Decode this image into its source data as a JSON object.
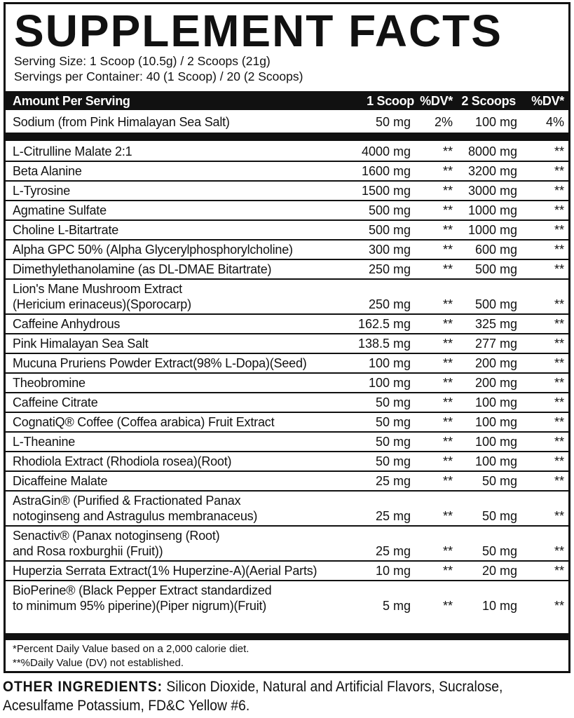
{
  "title": "SUPPLEMENT FACTS",
  "serving_size": "Serving Size: 1 Scoop (10.5g) / 2 Scoops (21g)",
  "servings_per_container": "Servings per Container: 40 (1 Scoop) / 20 (2 Scoops)",
  "header": {
    "amount": "Amount Per Serving",
    "scoop1": "1 Scoop",
    "dv1": "%DV*",
    "scoop2": "2 Scoops",
    "dv2": "%DV*"
  },
  "sodium": {
    "name": "Sodium (from Pink Himalayan Sea Salt)",
    "a1": "50 mg",
    "d1": "2%",
    "a2": "100 mg",
    "d2": "4%"
  },
  "ingredients": [
    {
      "lines": [
        "L-Citrulline Malate 2:1"
      ],
      "a1": "4000 mg",
      "d1": "**",
      "a2": "8000 mg",
      "d2": "**"
    },
    {
      "lines": [
        "Beta Alanine"
      ],
      "a1": "1600 mg",
      "d1": "**",
      "a2": "3200 mg",
      "d2": "**"
    },
    {
      "lines": [
        "L-Tyrosine"
      ],
      "a1": "1500 mg",
      "d1": "**",
      "a2": "3000 mg",
      "d2": "**"
    },
    {
      "lines": [
        "Agmatine Sulfate"
      ],
      "a1": "500 mg",
      "d1": "**",
      "a2": "1000 mg",
      "d2": "**"
    },
    {
      "lines": [
        "Choline L-Bitartrate"
      ],
      "a1": "500 mg",
      "d1": "**",
      "a2": "1000 mg",
      "d2": "**"
    },
    {
      "lines": [
        "Alpha GPC 50% (Alpha Glycerylphosphorylcholine)"
      ],
      "a1": "300 mg",
      "d1": "**",
      "a2": "600 mg",
      "d2": "**"
    },
    {
      "lines": [
        "Dimethylethanolamine (as DL-DMAE Bitartrate)"
      ],
      "a1": "250 mg",
      "d1": "**",
      "a2": "500 mg",
      "d2": "**"
    },
    {
      "lines": [
        "Lion's Mane Mushroom Extract",
        "(Hericium erinaceus)(Sporocarp)"
      ],
      "a1": "250 mg",
      "d1": "**",
      "a2": "500 mg",
      "d2": "**"
    },
    {
      "lines": [
        "Caffeine Anhydrous"
      ],
      "a1": "162.5 mg",
      "d1": "**",
      "a2": "325 mg",
      "d2": "**"
    },
    {
      "lines": [
        "Pink Himalayan Sea Salt"
      ],
      "a1": "138.5 mg",
      "d1": "**",
      "a2": "277 mg",
      "d2": "**"
    },
    {
      "lines": [
        "Mucuna Pruriens Powder Extract(98% L-Dopa)(Seed)"
      ],
      "a1": "100 mg",
      "d1": "**",
      "a2": "200 mg",
      "d2": "**"
    },
    {
      "lines": [
        "Theobromine"
      ],
      "a1": "100 mg",
      "d1": "**",
      "a2": "200 mg",
      "d2": "**"
    },
    {
      "lines": [
        "Caffeine Citrate"
      ],
      "a1": "50 mg",
      "d1": "**",
      "a2": "100 mg",
      "d2": "**"
    },
    {
      "lines": [
        "CognatiQ® Coffee (Coffea arabica) Fruit Extract"
      ],
      "a1": "50 mg",
      "d1": "**",
      "a2": "100 mg",
      "d2": "**"
    },
    {
      "lines": [
        "L-Theanine"
      ],
      "a1": "50 mg",
      "d1": "**",
      "a2": "100 mg",
      "d2": "**"
    },
    {
      "lines": [
        "Rhodiola Extract (Rhodiola rosea)(Root)"
      ],
      "a1": "50 mg",
      "d1": "**",
      "a2": "100 mg",
      "d2": "**"
    },
    {
      "lines": [
        "Dicaffeine Malate"
      ],
      "a1": "25 mg",
      "d1": "**",
      "a2": "50 mg",
      "d2": "**"
    },
    {
      "lines": [
        "AstraGin® (Purified & Fractionated Panax",
        "notoginseng and Astragulus membranaceus)"
      ],
      "a1": "25 mg",
      "d1": "**",
      "a2": "50 mg",
      "d2": "**"
    },
    {
      "lines": [
        "Senactiv® (Panax notoginseng (Root)",
        "and Rosa roxburghii (Fruit))"
      ],
      "a1": "25 mg",
      "d1": "**",
      "a2": "50 mg",
      "d2": "**"
    },
    {
      "lines": [
        "Huperzia Serrata Extract(1% Huperzine-A)(Aerial Parts)"
      ],
      "a1": "10 mg",
      "d1": "**",
      "a2": "20 mg",
      "d2": "**"
    },
    {
      "lines": [
        "BioPerine® (Black Pepper Extract standardized",
        "to minimum 95% piperine)(Piper nigrum)(Fruit)"
      ],
      "a1": "5 mg",
      "d1": "**",
      "a2": "10 mg",
      "d2": "**"
    }
  ],
  "footnotes": [
    "*Percent Daily Value based on a 2,000 calorie diet.",
    "**%Daily Value (DV) not established."
  ],
  "other_ingredients": {
    "label": "OTHER INGREDIENTS:",
    "line1": " Silicon Dioxide, Natural and Artificial Flavors, Sucralose,",
    "line2": "Acesulfame Potassium, FD&C Yellow #6."
  }
}
